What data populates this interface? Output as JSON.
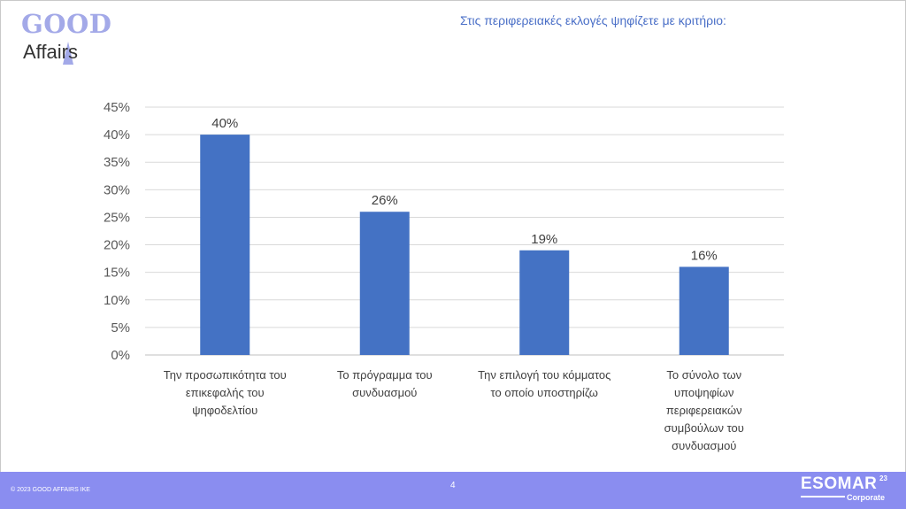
{
  "logo": {
    "line1": "GOOD",
    "line2": "Affairs"
  },
  "slide_title": "Στις περιφερειακές εκλογές ψηφίζετε με κριτήριο:",
  "chart_data": {
    "type": "bar",
    "title": "",
    "xlabel": "",
    "ylabel": "",
    "ylim": [
      0,
      45
    ],
    "y_ticks": [
      "0%",
      "5%",
      "10%",
      "15%",
      "20%",
      "25%",
      "30%",
      "35%",
      "40%",
      "45%"
    ],
    "grid": true,
    "bar_color": "#4472c4",
    "categories": [
      [
        "Την προσωπικότητα του",
        "επικεφαλής του",
        "ψηφοδελτίου"
      ],
      [
        "Το πρόγραμμα του",
        "συνδυασμού"
      ],
      [
        "Την επιλογή του κόμματος",
        "το οποίο υποστηρίζω"
      ],
      [
        "Το σύνολο των",
        "υποψηφίων",
        "περιφερειακών",
        "συμβούλων του",
        "συνδυασμού"
      ]
    ],
    "values": [
      40,
      26,
      19,
      16
    ],
    "data_labels": [
      "40%",
      "26%",
      "19%",
      "16%"
    ]
  },
  "footer": {
    "copyright": "© 2023 GOOD AFFAIRS IKE",
    "page_number": "4",
    "badge_word": "ESOMAR",
    "badge_sup": "23",
    "badge_sub": "Corporate"
  }
}
